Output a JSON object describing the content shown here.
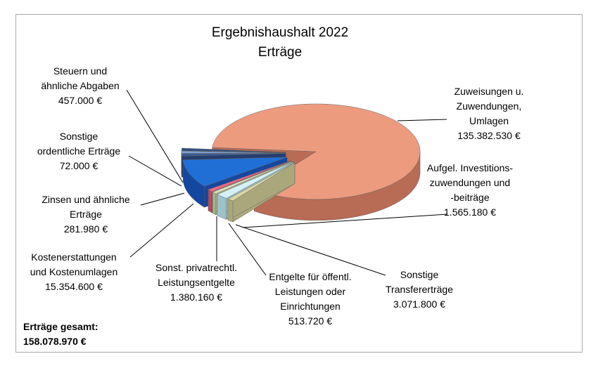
{
  "chart_data": {
    "type": "pie",
    "title": "Ergebnishaushalt 2022",
    "subtitle": "Erträge",
    "slices": [
      {
        "label": [
          "Zuweisungen u.",
          "Zuwendungen,",
          "Umlagen"
        ],
        "value": 135382530,
        "value_text": "135.382.530 €",
        "color": "#ec9b7f",
        "side": "#b86b55"
      },
      {
        "label": [
          "Aufgel. Investitions-",
          "zuwendungen und",
          "-beiträge"
        ],
        "value": 1565180,
        "value_text": "1.565.180 €",
        "color": "#d9d6a8",
        "side": "#aaa77c"
      },
      {
        "label": [
          "Sonstige",
          "Transfererträge"
        ],
        "value": 3071800,
        "value_text": "3.071.800 €",
        "color": "#d6f0f5",
        "side": "#9ec2c9"
      },
      {
        "label": [
          "Entgelte für öffentl.",
          "Leistungen oder",
          "Einrichtungen"
        ],
        "value": 513720,
        "value_text": "513.720 €",
        "color": "#d8e2c0",
        "side": "#a7b38e"
      },
      {
        "label": [
          "Sonst. privatrechtl.",
          "Leistungsentgelte"
        ],
        "value": 1380160,
        "value_text": "1.380.160 €",
        "color": "#f06a84",
        "side": "#b84a5f"
      },
      {
        "label": [
          "Kostenerstattungen",
          "und Kostenumlagen"
        ],
        "value": 15354600,
        "value_text": "15.354.600 €",
        "color": "#1f6fd6",
        "side": "#1448a0"
      },
      {
        "label": [
          "Zinsen und ähnliche",
          "Erträge"
        ],
        "value": 281980,
        "value_text": "281.980 €",
        "color": "#3a5a9a",
        "side": "#263e6e"
      },
      {
        "label": [
          "Sonstige",
          "ordentliche Erträge"
        ],
        "value": 72000,
        "value_text": "72.000 €",
        "color": "#7ca0d8",
        "side": "#5373a6"
      },
      {
        "label": [
          "Steuern und",
          "ähnliche Abgaben"
        ],
        "value": 457000,
        "value_text": "457.000 €",
        "color": "#2e4f86",
        "side": "#1d3358"
      }
    ],
    "total_label": "Erträge gesamt:",
    "total_value": "158.078.970 €"
  }
}
